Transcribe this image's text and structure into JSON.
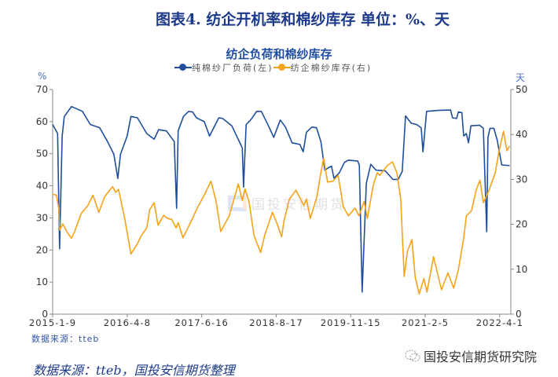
{
  "figure_title": "图表4.  纺企开机率和棉纱库存  单位：%、天",
  "source_small": "数据来源：tteb",
  "source_big": "数据来源：tteb，国投安信期货整理",
  "brand_watermark": "国投安信期货研究院",
  "center_watermark": "国投安信期货",
  "colors": {
    "load": "#1f4e9c",
    "inventory": "#f5a31a",
    "axis": "#888888",
    "title": "#1d3a8a"
  },
  "chart_data": {
    "type": "line",
    "title": "纺企负荷和棉纱库存",
    "left_unit": "%",
    "right_unit": "天",
    "legend_position": "top",
    "grid": false,
    "x_ticks": [
      "2015-1-9",
      "2016-4-8",
      "2017-6-16",
      "2018-8-17",
      "2019-11-15",
      "2021-2-5",
      "2022-4-1"
    ],
    "x_end": "2022-6-5",
    "y_left": {
      "range": [
        0,
        70
      ],
      "ticks": [
        "0",
        "10",
        "20",
        "30",
        "40",
        "50",
        "60",
        "70"
      ]
    },
    "y_right": {
      "range": [
        0,
        50
      ],
      "ticks": [
        "0",
        "10",
        "20",
        "30",
        "40",
        "50"
      ]
    },
    "series": [
      {
        "name": "纯棉纱厂负荷(左)",
        "axis": "left",
        "color_key": "load",
        "points": [
          [
            "2015-1-9",
            59.1
          ],
          [
            "2015-2-8",
            56.3
          ],
          [
            "2015-2-20",
            20.4
          ],
          [
            "2015-3-8",
            55.5
          ],
          [
            "2015-3-21",
            61.6
          ],
          [
            "2015-5-4",
            64.7
          ],
          [
            "2015-7-10",
            63.2
          ],
          [
            "2015-8-27",
            59.1
          ],
          [
            "2015-10-23",
            58.1
          ],
          [
            "2015-12-10",
            53.8
          ],
          [
            "2016-1-18",
            49.8
          ],
          [
            "2016-2-11",
            42.3
          ],
          [
            "2016-2-27",
            49.8
          ],
          [
            "2016-4-8",
            55.5
          ],
          [
            "2016-4-30",
            61.6
          ],
          [
            "2016-6-7",
            61.2
          ],
          [
            "2016-7-31",
            56.3
          ],
          [
            "2016-9-12",
            54.5
          ],
          [
            "2016-10-8",
            57.5
          ],
          [
            "2016-11-23",
            57.1
          ],
          [
            "2017-1-7",
            53.8
          ],
          [
            "2017-1-21",
            33.0
          ],
          [
            "2017-1-30",
            57.1
          ],
          [
            "2017-3-2",
            61.6
          ],
          [
            "2017-4-1",
            63.2
          ],
          [
            "2017-4-24",
            63.0
          ],
          [
            "2017-5-17",
            61.2
          ],
          [
            "2017-7-1",
            60.0
          ],
          [
            "2017-7-31",
            55.5
          ],
          [
            "2017-9-22",
            61.2
          ],
          [
            "2017-10-14",
            61.0
          ],
          [
            "2017-12-6",
            58.7
          ],
          [
            "2018-2-4",
            51.8
          ],
          [
            "2018-2-11",
            39.6
          ],
          [
            "2018-2-26",
            59.1
          ],
          [
            "2018-3-28",
            60.8
          ],
          [
            "2018-4-27",
            63.2
          ],
          [
            "2018-5-24",
            63.2
          ],
          [
            "2018-7-4",
            58.7
          ],
          [
            "2018-8-3",
            55.1
          ],
          [
            "2018-9-11",
            60.5
          ],
          [
            "2018-10-13",
            58.3
          ],
          [
            "2018-11-22",
            53.4
          ],
          [
            "2019-1-9",
            52.9
          ],
          [
            "2019-1-29",
            50.6
          ],
          [
            "2019-2-18",
            56.7
          ],
          [
            "2019-3-23",
            58.3
          ],
          [
            "2019-4-20",
            58.1
          ],
          [
            "2019-5-17",
            53.8
          ],
          [
            "2019-6-10",
            44.9
          ],
          [
            "2019-7-4",
            45.7
          ],
          [
            "2019-7-21",
            46.1
          ],
          [
            "2019-8-5",
            42.4
          ],
          [
            "2019-9-6",
            44.0
          ],
          [
            "2019-10-8",
            47.3
          ],
          [
            "2019-11-1",
            48.0
          ],
          [
            "2019-12-27",
            47.7
          ],
          [
            "2020-1-6",
            46.5
          ],
          [
            "2020-1-23",
            6.9
          ],
          [
            "2020-2-17",
            40.8
          ],
          [
            "2020-3-15",
            46.7
          ],
          [
            "2020-4-15",
            44.9
          ],
          [
            "2020-6-9",
            44.7
          ],
          [
            "2020-7-26",
            42.0
          ],
          [
            "2020-8-27",
            42.0
          ],
          [
            "2020-9-20",
            44.5
          ],
          [
            "2020-10-10",
            61.8
          ],
          [
            "2020-11-13",
            59.5
          ],
          [
            "2020-12-15",
            59.1
          ],
          [
            "2021-1-12",
            58.1
          ],
          [
            "2021-1-23",
            50.6
          ],
          [
            "2021-2-13",
            63.2
          ],
          [
            "2021-4-16",
            63.5
          ],
          [
            "2021-6-28",
            63.6
          ],
          [
            "2021-7-9",
            61.2
          ],
          [
            "2021-8-1",
            61.0
          ],
          [
            "2021-8-11",
            63.0
          ],
          [
            "2021-8-31",
            62.8
          ],
          [
            "2021-9-10",
            55.5
          ],
          [
            "2021-9-25",
            56.3
          ],
          [
            "2021-10-7",
            53.4
          ],
          [
            "2021-10-21",
            58.7
          ],
          [
            "2021-12-8",
            58.9
          ],
          [
            "2021-12-30",
            57.9
          ],
          [
            "2022-1-18",
            25.7
          ],
          [
            "2022-1-25",
            55.1
          ],
          [
            "2022-2-5",
            57.9
          ],
          [
            "2022-2-27",
            57.9
          ],
          [
            "2022-3-18",
            54.3
          ],
          [
            "2022-4-13",
            46.5
          ],
          [
            "2022-5-29",
            46.3
          ]
        ]
      },
      {
        "name": "纺企棉纱库存(右)",
        "axis": "right",
        "color_key": "inventory",
        "points": [
          [
            "2015-1-9",
            26.7
          ],
          [
            "2015-2-1",
            26.5
          ],
          [
            "2015-2-16",
            23.3
          ],
          [
            "2015-2-21",
            18.7
          ],
          [
            "2015-3-12",
            20.1
          ],
          [
            "2015-4-5",
            18.4
          ],
          [
            "2015-5-3",
            16.9
          ],
          [
            "2015-5-23",
            18.4
          ],
          [
            "2015-7-2",
            22.4
          ],
          [
            "2015-8-12",
            24.2
          ],
          [
            "2015-9-12",
            26.5
          ],
          [
            "2015-10-18",
            22.7
          ],
          [
            "2015-11-23",
            26.2
          ],
          [
            "2016-1-10",
            28.4
          ],
          [
            "2016-1-29",
            27.1
          ],
          [
            "2016-2-15",
            27.8
          ],
          [
            "2016-3-22",
            21.6
          ],
          [
            "2016-4-30",
            13.4
          ],
          [
            "2016-6-7",
            15.7
          ],
          [
            "2016-6-30",
            17.5
          ],
          [
            "2016-7-31",
            19.2
          ],
          [
            "2016-8-18",
            23.3
          ],
          [
            "2016-9-12",
            24.8
          ],
          [
            "2016-10-5",
            19.8
          ],
          [
            "2016-11-7",
            22.0
          ],
          [
            "2016-11-30",
            21.3
          ],
          [
            "2016-12-23",
            21.1
          ],
          [
            "2017-1-18",
            19.2
          ],
          [
            "2017-1-30",
            20.4
          ],
          [
            "2017-2-27",
            17.0
          ],
          [
            "2017-4-16",
            20.7
          ],
          [
            "2017-5-25",
            23.9
          ],
          [
            "2017-6-28",
            26.3
          ],
          [
            "2017-8-8",
            29.6
          ],
          [
            "2017-9-7",
            25.1
          ],
          [
            "2017-10-3",
            18.4
          ],
          [
            "2017-11-21",
            21.9
          ],
          [
            "2018-1-12",
            29.0
          ],
          [
            "2018-2-4",
            25.3
          ],
          [
            "2018-2-19",
            27.9
          ],
          [
            "2018-3-14",
            25.1
          ],
          [
            "2018-4-12",
            17.5
          ],
          [
            "2018-5-20",
            13.7
          ],
          [
            "2018-6-12",
            17.5
          ],
          [
            "2018-7-27",
            22.7
          ],
          [
            "2018-8-26",
            19.8
          ],
          [
            "2018-9-19",
            17.2
          ],
          [
            "2018-10-5",
            21.0
          ],
          [
            "2018-11-6",
            25.6
          ],
          [
            "2018-12-16",
            27.6
          ],
          [
            "2019-2-2",
            24.2
          ],
          [
            "2019-2-18",
            25.6
          ],
          [
            "2019-3-14",
            21.3
          ],
          [
            "2019-4-23",
            26.2
          ],
          [
            "2019-5-17",
            31.5
          ],
          [
            "2019-6-3",
            34.7
          ],
          [
            "2019-6-27",
            29.4
          ],
          [
            "2019-7-29",
            29.6
          ],
          [
            "2019-8-30",
            30.9
          ],
          [
            "2019-10-1",
            23.9
          ],
          [
            "2019-11-1",
            21.9
          ],
          [
            "2019-12-11",
            23.6
          ],
          [
            "2020-1-4",
            21.9
          ],
          [
            "2020-2-4",
            25.1
          ],
          [
            "2020-2-23",
            21.3
          ],
          [
            "2020-3-30",
            28.8
          ],
          [
            "2020-4-23",
            31.5
          ],
          [
            "2020-5-8",
            30.9
          ],
          [
            "2020-6-25",
            33.2
          ],
          [
            "2020-7-23",
            33.9
          ],
          [
            "2020-8-19",
            31.5
          ],
          [
            "2020-9-11",
            25.6
          ],
          [
            "2020-10-2",
            8.4
          ],
          [
            "2020-10-21",
            14.0
          ],
          [
            "2020-11-17",
            16.6
          ],
          [
            "2020-12-7",
            8.2
          ],
          [
            "2020-12-31",
            4.5
          ],
          [
            "2021-1-28",
            7.9
          ],
          [
            "2021-2-15",
            4.9
          ],
          [
            "2021-3-24",
            12.8
          ],
          [
            "2021-5-8",
            5.4
          ],
          [
            "2021-6-13",
            9.2
          ],
          [
            "2021-7-16",
            5.8
          ],
          [
            "2021-8-11",
            9.9
          ],
          [
            "2021-9-10",
            16.9
          ],
          [
            "2021-9-25",
            21.9
          ],
          [
            "2021-10-24",
            23.0
          ],
          [
            "2021-11-20",
            27.7
          ],
          [
            "2021-12-11",
            29.8
          ],
          [
            "2021-12-30",
            24.8
          ],
          [
            "2022-1-29",
            27.4
          ],
          [
            "2022-3-7",
            31.5
          ],
          [
            "2022-3-29",
            36.4
          ],
          [
            "2022-4-23",
            40.7
          ],
          [
            "2022-5-13",
            36.4
          ],
          [
            "2022-5-28",
            37.4
          ]
        ]
      }
    ]
  }
}
